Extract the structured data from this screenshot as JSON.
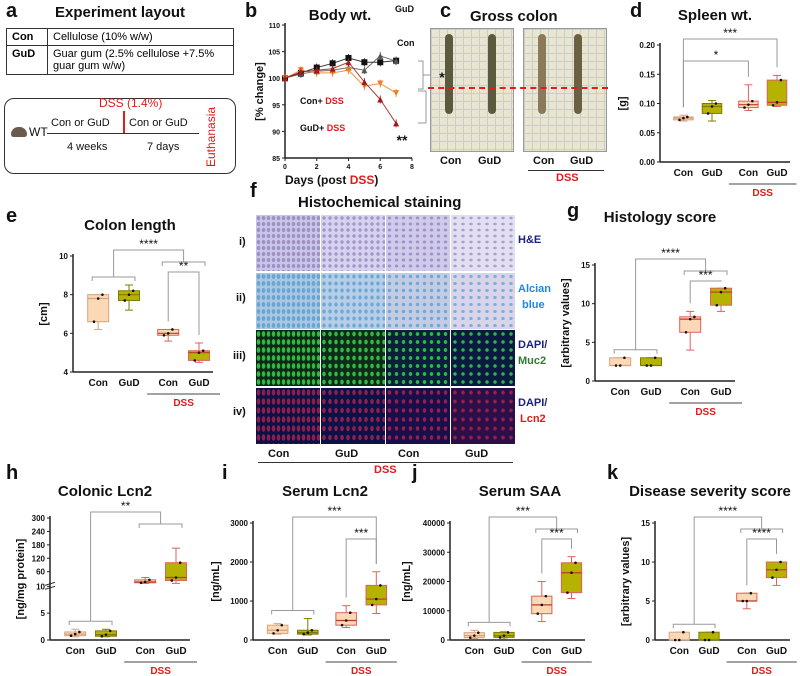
{
  "panel_letters": {
    "a": "a",
    "b": "b",
    "c": "c",
    "d": "d",
    "e": "e",
    "f": "f",
    "g": "g",
    "h": "h",
    "i": "i",
    "j": "j",
    "k": "k"
  },
  "panel_a": {
    "title": "Experiment layout",
    "rows": [
      {
        "key": "Con",
        "desc": "Cellulose (10% w/w)"
      },
      {
        "key": "GuD",
        "desc": "Guar gum (2.5% cellulose +7.5% guar gum w/w)"
      }
    ],
    "timeline": {
      "start": "WT",
      "diet1": "Con or GuD",
      "diet2": "Con or GuD",
      "dss": "DSS (1.4%)",
      "dur1": "4 weeks",
      "dur2": "7 days",
      "end": "Euthanasia"
    }
  },
  "panel_c": {
    "title": "Gross colon",
    "labels": [
      "Con",
      "GuD",
      "Con",
      "GuD"
    ],
    "dss": "DSS"
  },
  "panel_f": {
    "title": "Histochemical staining",
    "rows": [
      {
        "roman": "i)",
        "stain": "H&E",
        "stain2": ""
      },
      {
        "roman": "ii)",
        "stain": "Alcian",
        "stain2": "blue"
      },
      {
        "roman": "iii)",
        "stain": "DAPI/",
        "stain2": "Muc2"
      },
      {
        "roman": "iv)",
        "stain": "DAPI/",
        "stain2": "Lcn2"
      }
    ],
    "cols": [
      "Con",
      "GuD"
    ],
    "dss": "DSS"
  },
  "colors": {
    "con": "#fcd9b6",
    "con_edge": "#d9a27c",
    "gud": "#b5b300",
    "gud_edge": "#7d7b00",
    "dss_edge": "#e0605a",
    "red": "#e31a1c",
    "bracket": "#999999"
  },
  "chart_data": [
    {
      "id": "b",
      "type": "line",
      "title": "Body wt.",
      "xlabel": "Days (post ",
      "xlabel_red": "DSS",
      "xlabel_end": ")",
      "ylabel": "[% change]",
      "xlim": [
        0,
        8
      ],
      "ylim": [
        85,
        110
      ],
      "xticks": [
        0,
        2,
        4,
        6,
        8
      ],
      "yticks": [
        85,
        90,
        95,
        100,
        105,
        110
      ],
      "x": [
        0,
        1,
        2,
        3,
        4,
        5,
        6,
        7
      ],
      "series": [
        {
          "name": "GuD",
          "color": "#111111",
          "label_color": "#111111",
          "values": [
            100,
            101,
            102,
            102.8,
            103.8,
            103,
            103,
            103.3
          ]
        },
        {
          "name": "Con",
          "color": "#555555",
          "label_color": "#111111",
          "values": [
            100,
            100.8,
            101.3,
            101.5,
            102,
            101.5,
            104.2,
            103.2
          ]
        },
        {
          "name": "Con+ ",
          "name_red": "DSS",
          "color": "#f47c20",
          "label_color": "#111111",
          "values": [
            100,
            101.5,
            101,
            101,
            101.5,
            98.5,
            99,
            97.2
          ]
        },
        {
          "name": "GuD+ ",
          "name_red": "DSS",
          "color": "#a01c1c",
          "label_color": "#111111",
          "values": [
            100,
            101.2,
            101.5,
            101.8,
            103,
            99.3,
            96,
            91.5
          ]
        }
      ],
      "annotations": [
        "*",
        "**"
      ]
    },
    {
      "id": "d",
      "type": "box",
      "title": "Spleen wt.",
      "ylabel": "[g]",
      "ylim": [
        0,
        0.2
      ],
      "yticks": [
        "0.00",
        "0.05",
        "0.10",
        "0.15",
        "0.20"
      ],
      "groups": [
        "Con",
        "GuD",
        "Con",
        "GuD"
      ],
      "dss_label": "DSS",
      "boxes": [
        [
          0.07,
          0.072,
          0.075,
          0.077,
          0.08
        ],
        [
          0.07,
          0.083,
          0.095,
          0.1,
          0.105
        ],
        [
          0.088,
          0.093,
          0.098,
          0.104,
          0.132
        ],
        [
          0.095,
          0.097,
          0.102,
          0.14,
          0.148
        ]
      ],
      "comparisons": [
        {
          "label": "***",
          "left": [
            0
          ],
          "right": [
            3
          ]
        },
        {
          "label": "*",
          "left": [
            0
          ],
          "right": [
            2
          ]
        }
      ]
    },
    {
      "id": "e",
      "type": "box",
      "title": "Colon length",
      "ylabel": "[cm]",
      "ylim": [
        4,
        10
      ],
      "yticks": [
        "4",
        "6",
        "8",
        "10"
      ],
      "groups": [
        "Con",
        "GuD",
        "Con",
        "GuD"
      ],
      "dss_label": "DSS",
      "boxes": [
        [
          6.2,
          6.6,
          7.8,
          8,
          8
        ],
        [
          7.2,
          7.7,
          8,
          8.2,
          8.5
        ],
        [
          5.6,
          5.9,
          6,
          6.2,
          6.2
        ],
        [
          4.5,
          4.6,
          5,
          5.1,
          5.5
        ]
      ],
      "comparisons": [
        {
          "label": "****",
          "left": [
            0,
            1
          ],
          "right": [
            2,
            3
          ]
        },
        {
          "label": "**",
          "left": [
            2
          ],
          "right": [
            3
          ]
        }
      ]
    },
    {
      "id": "g",
      "type": "box",
      "title": "Histology score",
      "ylabel": "[arbitrary values]",
      "ylim": [
        0,
        15
      ],
      "yticks": [
        "0",
        "5",
        "10",
        "15"
      ],
      "groups": [
        "Con",
        "GuD",
        "Con",
        "GuD"
      ],
      "dss_label": "DSS",
      "boxes": [
        [
          2,
          2,
          2,
          3,
          3
        ],
        [
          2,
          2,
          2,
          3,
          3
        ],
        [
          4,
          6.3,
          8,
          8.3,
          9
        ],
        [
          9,
          9.8,
          11.5,
          12,
          12
        ]
      ],
      "comparisons": [
        {
          "label": "****",
          "left": [
            0,
            1
          ],
          "right": [
            2,
            3
          ]
        },
        {
          "label": "***",
          "left": [
            2
          ],
          "right": [
            3
          ]
        }
      ]
    },
    {
      "id": "h",
      "type": "box",
      "title": "Colonic Lcn2",
      "ylabel": "[ng/mg protein]",
      "ylim": [
        0,
        300
      ],
      "axis_break": 10,
      "yticks": [
        "0",
        "5",
        "10",
        "60",
        "120",
        "180",
        "240",
        "300"
      ],
      "groups": [
        "Con",
        "GuD",
        "Con",
        "GuD"
      ],
      "dss_label": "DSS",
      "boxes": [
        [
          0.6,
          0.8,
          1.1,
          1.5,
          2
        ],
        [
          0.6,
          0.7,
          1,
          1.7,
          2
        ],
        [
          20,
          22,
          25,
          32,
          40
        ],
        [
          20,
          30,
          40,
          100,
          165
        ]
      ],
      "comparisons": [
        {
          "label": "**",
          "left": [
            0,
            1
          ],
          "right": [
            2,
            3
          ]
        }
      ]
    },
    {
      "id": "i",
      "type": "box",
      "title": "Serum Lcn2",
      "ylabel": "[ng/mL]",
      "ylim": [
        0,
        3000
      ],
      "yticks": [
        "0",
        "1000",
        "2000",
        "3000"
      ],
      "groups": [
        "Con",
        "GuD",
        "Con",
        "GuD"
      ],
      "dss_label": "DSS",
      "boxes": [
        [
          150,
          170,
          250,
          380,
          420
        ],
        [
          130,
          150,
          190,
          250,
          550
        ],
        [
          320,
          380,
          500,
          700,
          880
        ],
        [
          680,
          900,
          1050,
          1400,
          1750
        ]
      ],
      "comparisons": [
        {
          "label": "***",
          "left": [
            0,
            1
          ],
          "right": [
            3
          ]
        },
        {
          "label": "***",
          "left": [
            2
          ],
          "right": [
            3
          ]
        }
      ]
    },
    {
      "id": "j",
      "type": "box",
      "title": "Serum SAA",
      "ylabel": "[ng/mL]",
      "ylim": [
        0,
        40000
      ],
      "yticks": [
        "0",
        "10000",
        "20000",
        "30000",
        "40000"
      ],
      "groups": [
        "Con",
        "GuD",
        "Con",
        "GuD"
      ],
      "dss_label": "DSS",
      "boxes": [
        [
          500,
          800,
          1500,
          2500,
          3300
        ],
        [
          300,
          900,
          1500,
          2600,
          2800
        ],
        [
          6300,
          9000,
          12000,
          15000,
          20000
        ],
        [
          14200,
          16200,
          23000,
          26400,
          28500
        ]
      ],
      "comparisons": [
        {
          "label": "***",
          "left": [
            0,
            1
          ],
          "right": [
            2,
            3
          ]
        },
        {
          "label": "***",
          "left": [
            2
          ],
          "right": [
            3
          ]
        }
      ]
    },
    {
      "id": "k",
      "type": "box",
      "title": "Disease severity score",
      "ylabel": "[arbitrary values]",
      "ylim": [
        0,
        15
      ],
      "yticks": [
        "0",
        "5",
        "10",
        "15"
      ],
      "groups": [
        "Con",
        "GuD",
        "Con",
        "GuD"
      ],
      "dss_label": "DSS",
      "boxes": [
        [
          0,
          0,
          0,
          1,
          1
        ],
        [
          0,
          0,
          0,
          1,
          1
        ],
        [
          4,
          5,
          5,
          6,
          6
        ],
        [
          7,
          8,
          9,
          10,
          10
        ]
      ],
      "comparisons": [
        {
          "label": "****",
          "left": [
            0,
            1
          ],
          "right": [
            2,
            3
          ]
        },
        {
          "label": "****",
          "left": [
            2
          ],
          "right": [
            3
          ]
        }
      ]
    }
  ]
}
